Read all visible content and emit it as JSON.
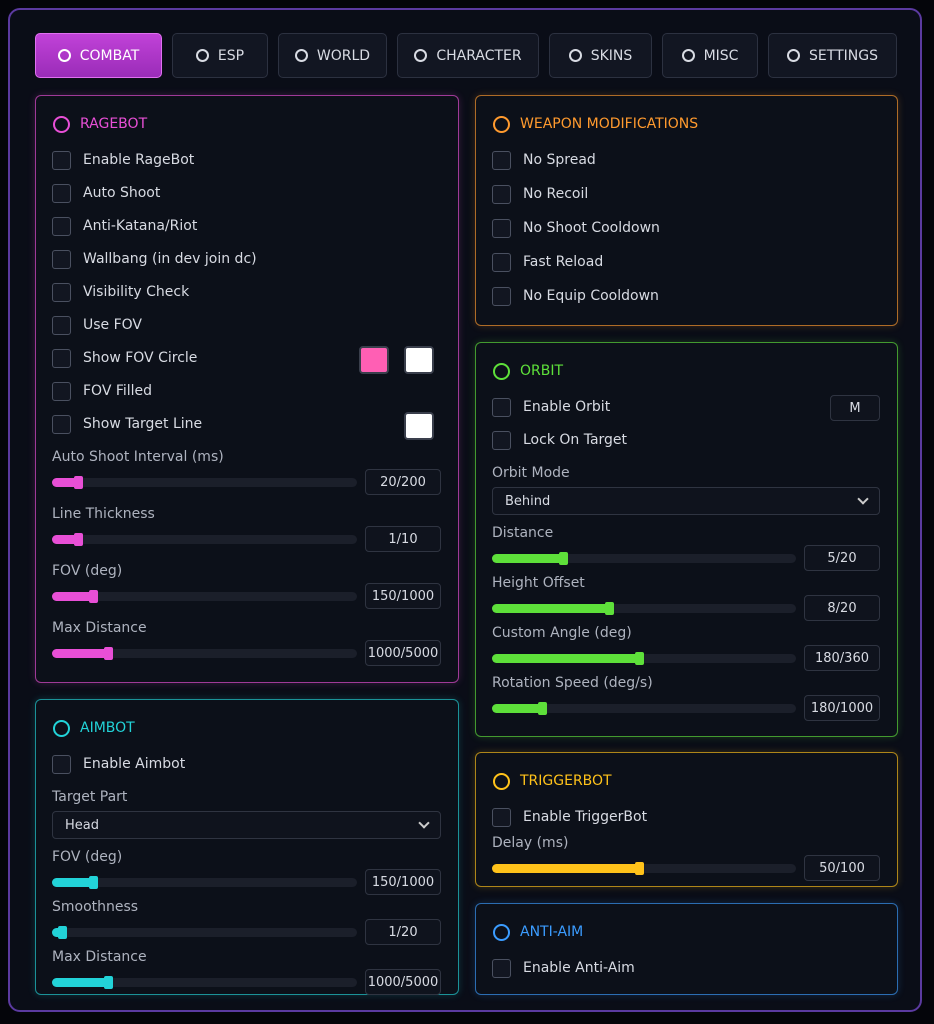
{
  "tabs": [
    {
      "label": "COMBAT",
      "active": true
    },
    {
      "label": "ESP"
    },
    {
      "label": "WORLD"
    },
    {
      "label": "CHARACTER"
    },
    {
      "label": "SKINS"
    },
    {
      "label": "MISC"
    },
    {
      "label": "SETTINGS"
    }
  ],
  "panels": [
    {
      "title": "RAGEBOT",
      "color": "#e84fd6",
      "items": [
        {
          "type": "checkbox",
          "label": "Enable RageBot"
        },
        {
          "type": "checkbox",
          "label": "Auto Shoot"
        },
        {
          "type": "checkbox",
          "label": "Anti-Katana/Riot"
        },
        {
          "type": "checkbox",
          "label": "Wallbang (in dev join dc)"
        },
        {
          "type": "checkbox",
          "label": "Visibility Check"
        },
        {
          "type": "checkbox",
          "label": "Use FOV"
        },
        {
          "type": "checkbox",
          "label": "Show FOV Circle",
          "swatches": [
            "#ff5fb4",
            "#ffffff"
          ]
        },
        {
          "type": "checkbox",
          "label": "FOV Filled"
        },
        {
          "type": "checkbox",
          "label": "Show Target Line",
          "swatches": [
            "#ffffff"
          ]
        },
        {
          "type": "slider",
          "label": "Auto Shoot Interval (ms)",
          "value": "20/200"
        },
        {
          "type": "slider",
          "label": "Line Thickness",
          "value": "1/10"
        },
        {
          "type": "slider",
          "label": "FOV (deg)",
          "value": "150/1000"
        },
        {
          "type": "slider",
          "label": "Max Distance",
          "value": "1000/5000"
        }
      ]
    },
    {
      "title": "AIMBOT",
      "color": "#22d3d8",
      "items": [
        {
          "type": "checkbox",
          "label": "Enable Aimbot"
        },
        {
          "type": "select",
          "label": "Target Part",
          "value": "Head"
        },
        {
          "type": "slider",
          "label": "FOV (deg)",
          "value": "150/1000"
        },
        {
          "type": "slider",
          "label": "Smoothness",
          "value": "1/20"
        },
        {
          "type": "slider",
          "label": "Max Distance",
          "value": "1000/5000"
        }
      ]
    },
    {
      "title": "WEAPON MODIFICATIONS",
      "color": "#ff9a2e",
      "items": [
        {
          "type": "checkbox",
          "label": "No Spread"
        },
        {
          "type": "checkbox",
          "label": "No Recoil"
        },
        {
          "type": "checkbox",
          "label": "No Shoot Cooldown"
        },
        {
          "type": "checkbox",
          "label": "Fast Reload"
        },
        {
          "type": "checkbox",
          "label": "No Equip Cooldown"
        }
      ]
    },
    {
      "title": "ORBIT",
      "color": "#5ee03a",
      "items": [
        {
          "type": "checkbox",
          "label": "Enable Orbit",
          "key": "M"
        },
        {
          "type": "checkbox",
          "label": "Lock On Target"
        },
        {
          "type": "select",
          "label": "Orbit Mode",
          "value": "Behind"
        },
        {
          "type": "slider",
          "label": "Distance",
          "value": "5/20"
        },
        {
          "type": "slider",
          "label": "Height Offset",
          "value": "8/20"
        },
        {
          "type": "slider",
          "label": "Custom Angle (deg)",
          "value": "180/360"
        },
        {
          "type": "slider",
          "label": "Rotation Speed (deg/s)",
          "value": "180/1000"
        }
      ]
    },
    {
      "title": "TRIGGERBOT",
      "color": "#ffc21a",
      "items": [
        {
          "type": "checkbox",
          "label": "Enable TriggerBot"
        },
        {
          "type": "slider",
          "label": "Delay (ms)",
          "value": "50/100"
        }
      ]
    },
    {
      "title": "ANTI-AIM",
      "color": "#3b9cff",
      "items": [
        {
          "type": "checkbox",
          "label": "Enable Anti-Aim"
        }
      ]
    }
  ]
}
